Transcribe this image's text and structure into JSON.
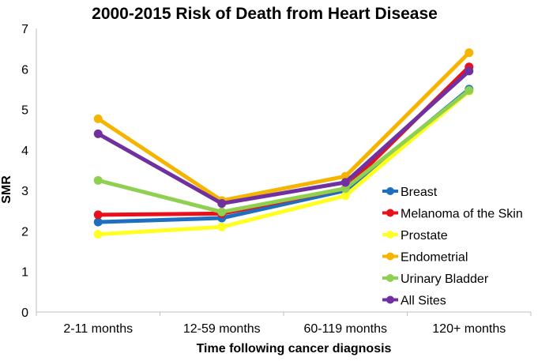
{
  "chart_data": {
    "type": "line",
    "title": "2000-2015 Risk of Death from Heart Disease",
    "xlabel": "Time following cancer diagnosis",
    "ylabel": "SMR",
    "categories": [
      "2-11 months",
      "12-59 months",
      "60-119 months",
      "120+ months"
    ],
    "ylim": [
      0,
      7
    ],
    "yticks": [
      "0",
      "1",
      "2",
      "3",
      "4",
      "5",
      "6",
      "7"
    ],
    "grid": false,
    "legend_position": "right-middle",
    "series": [
      {
        "name": "Breast",
        "color": "#1f6fc0",
        "values": [
          2.22,
          2.32,
          3.0,
          5.5
        ]
      },
      {
        "name": "Melanoma of the Skin",
        "color": "#e8101a",
        "values": [
          2.4,
          2.43,
          3.05,
          6.05
        ]
      },
      {
        "name": "Prostate",
        "color": "#ffff22",
        "values": [
          1.92,
          2.1,
          2.87,
          5.45
        ]
      },
      {
        "name": "Endometrial",
        "color": "#f5b400",
        "values": [
          4.77,
          2.75,
          3.35,
          6.4
        ]
      },
      {
        "name": "Urinary Bladder",
        "color": "#8fd050",
        "values": [
          3.25,
          2.47,
          3.05,
          5.47
        ]
      },
      {
        "name": "All Sites",
        "color": "#7030a0",
        "values": [
          4.4,
          2.68,
          3.2,
          5.95
        ]
      }
    ]
  }
}
